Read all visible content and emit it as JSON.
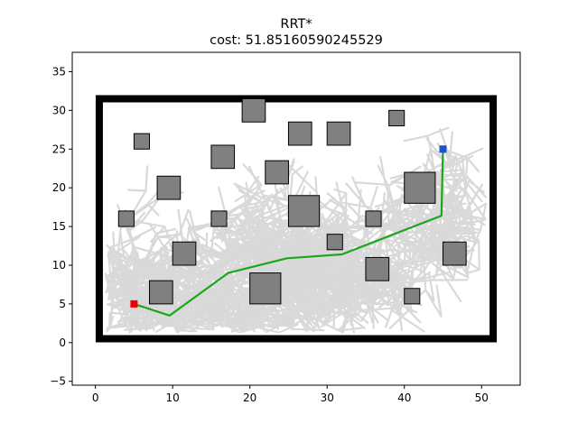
{
  "title": "RRT*",
  "subtitle": "cost: 51.85160590245529",
  "chart_data": {
    "type": "scatter",
    "title": "RRT*",
    "subtitle": "cost: 51.85160590245529",
    "xlabel": "",
    "ylabel": "",
    "xlim": [
      -3.0,
      55.0
    ],
    "ylim": [
      -5.5,
      37.5
    ],
    "x_ticks": [
      0,
      10,
      20,
      30,
      40,
      50
    ],
    "y_ticks": [
      -5,
      0,
      5,
      10,
      15,
      20,
      25,
      30,
      35
    ],
    "grid": false,
    "boundary": {
      "x0": 0.5,
      "y0": 0.5,
      "x1": 51.5,
      "y1": 31.5,
      "color": "#000000"
    },
    "start": {
      "x": 5.0,
      "y": 5.0,
      "color": "#ee0000"
    },
    "goal": {
      "x": 45.0,
      "y": 25.0,
      "color": "#1f4fd0"
    },
    "path_color": "#1aa81a",
    "obstacle_color": "#808080",
    "tree_color": "#d9d9d9",
    "obstacles": [
      [
        19,
        28.5,
        3,
        3
      ],
      [
        5,
        25,
        2,
        2
      ],
      [
        15,
        22.5,
        3,
        3
      ],
      [
        25,
        25.5,
        3,
        3
      ],
      [
        30,
        25.5,
        3,
        3
      ],
      [
        38,
        28,
        2,
        2
      ],
      [
        8,
        18.5,
        3,
        3
      ],
      [
        22,
        20.5,
        3,
        3
      ],
      [
        40,
        18,
        4,
        4
      ],
      [
        3,
        15,
        2,
        2
      ],
      [
        15,
        15,
        2,
        2
      ],
      [
        25,
        15,
        4,
        4
      ],
      [
        35,
        15,
        2,
        2
      ],
      [
        30,
        12,
        2,
        2
      ],
      [
        10,
        10,
        3,
        3
      ],
      [
        45,
        10,
        3,
        3
      ],
      [
        35,
        8,
        3,
        3
      ],
      [
        7,
        5,
        3,
        3
      ],
      [
        20,
        5,
        4,
        4
      ],
      [
        40,
        5,
        2,
        2
      ]
    ],
    "path": [
      [
        5.0,
        5.0
      ],
      [
        9.6,
        3.5
      ],
      [
        17.2,
        9.0
      ],
      [
        24.8,
        10.9
      ],
      [
        31.9,
        11.4
      ],
      [
        44.8,
        16.4
      ],
      [
        45.0,
        25.0
      ]
    ],
    "tree_roots": [
      [
        5.0,
        5.0
      ],
      [
        9.6,
        3.5
      ],
      [
        17.2,
        9.0
      ],
      [
        24.8,
        10.9
      ],
      [
        31.9,
        11.4
      ],
      [
        44.8,
        16.4
      ]
    ]
  }
}
